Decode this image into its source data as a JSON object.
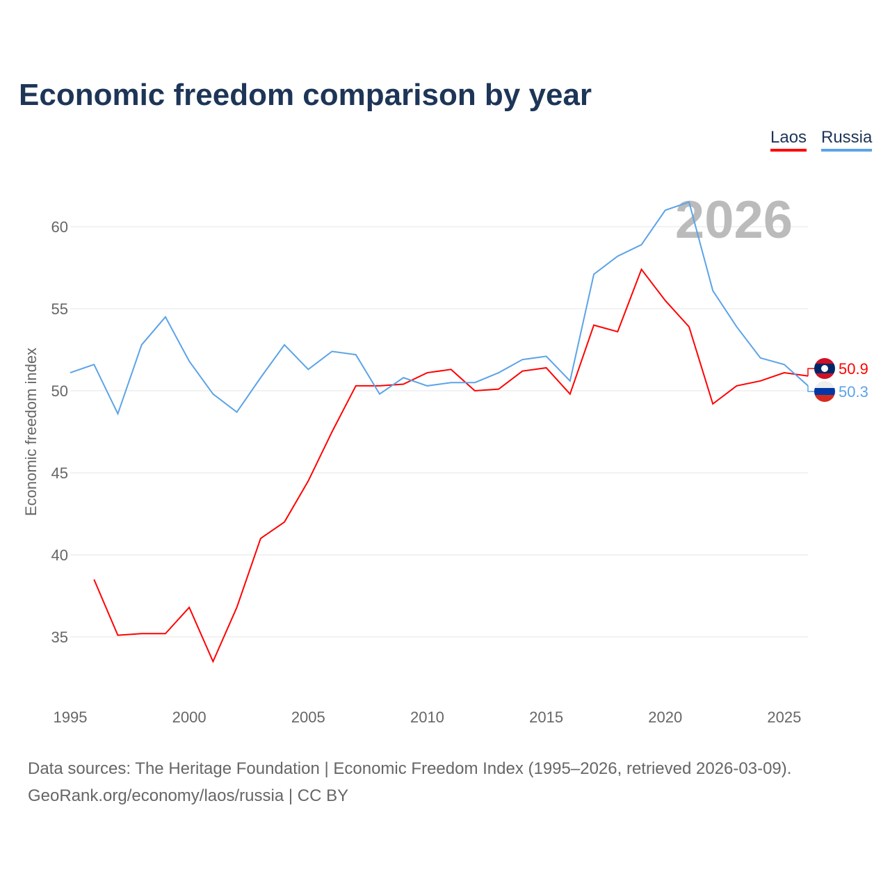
{
  "chart_data": {
    "type": "line",
    "title": "Economic freedom comparison by year",
    "ylabel": "Economic freedom index",
    "xlabel": "",
    "ylim": [
      31,
      63
    ],
    "xlim": [
      1995,
      2026
    ],
    "yticks": [
      35,
      40,
      45,
      50,
      55,
      60
    ],
    "xticks": [
      1995,
      2000,
      2005,
      2010,
      2015,
      2020,
      2025
    ],
    "grid": true,
    "legend_placement": "top-right",
    "year_label": "2026",
    "series": [
      {
        "name": "Laos",
        "color": "#ff0000",
        "end_label": "50.9",
        "x": [
          1996,
          1997,
          1998,
          1999,
          2000,
          2001,
          2002,
          2003,
          2004,
          2005,
          2006,
          2007,
          2008,
          2009,
          2010,
          2011,
          2012,
          2013,
          2014,
          2015,
          2016,
          2017,
          2018,
          2019,
          2020,
          2021,
          2022,
          2023,
          2024,
          2025,
          2026
        ],
        "values": [
          38.5,
          35.1,
          35.2,
          35.2,
          36.8,
          33.5,
          36.8,
          41.0,
          42.0,
          44.5,
          47.5,
          50.3,
          50.3,
          50.4,
          51.1,
          51.3,
          50.0,
          50.1,
          51.2,
          51.4,
          49.8,
          54.0,
          53.6,
          57.4,
          55.5,
          53.9,
          49.2,
          50.3,
          50.6,
          51.1,
          50.9
        ]
      },
      {
        "name": "Russia",
        "color": "#5ba3e8",
        "end_label": "50.3",
        "x": [
          1995,
          1996,
          1997,
          1998,
          1999,
          2000,
          2001,
          2002,
          2003,
          2004,
          2005,
          2006,
          2007,
          2008,
          2009,
          2010,
          2011,
          2012,
          2013,
          2014,
          2015,
          2016,
          2017,
          2018,
          2019,
          2020,
          2021,
          2022,
          2023,
          2024,
          2025,
          2026
        ],
        "values": [
          51.1,
          51.6,
          48.6,
          52.8,
          54.5,
          51.8,
          49.8,
          48.7,
          50.8,
          52.8,
          51.3,
          52.4,
          52.2,
          49.8,
          50.8,
          50.3,
          50.5,
          50.5,
          51.1,
          51.9,
          52.1,
          50.6,
          57.1,
          58.2,
          58.9,
          61.0,
          61.5,
          56.1,
          53.9,
          52.0,
          51.6,
          50.3
        ]
      }
    ]
  },
  "source": {
    "line1": "Data sources: The Heritage Foundation | Economic Freedom Index (1995–2026, retrieved 2026-03-09).",
    "line2": "GeoRank.org/economy/laos/russia | CC BY"
  }
}
